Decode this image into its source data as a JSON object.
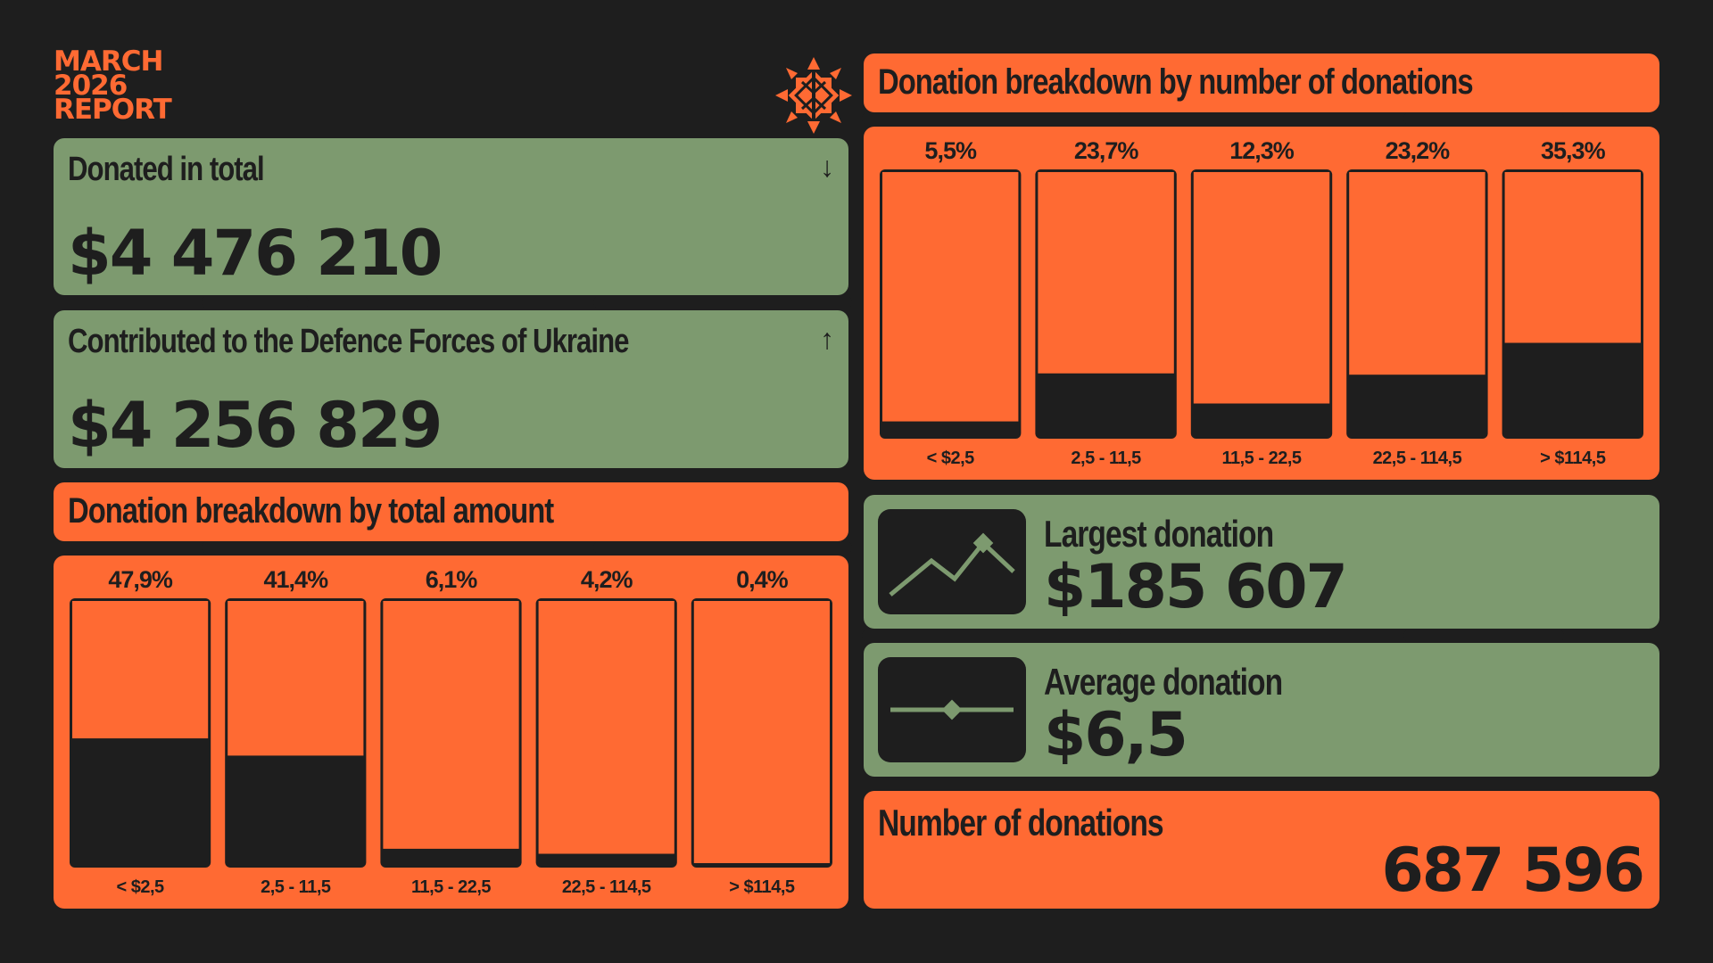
{
  "report": {
    "line1": "MARCH",
    "line2": "2026",
    "line3": "REPORT"
  },
  "colors": {
    "background": "#1e1e1e",
    "orange": "#ff6a33",
    "green": "#7d9a6f",
    "dark": "#1e1e1e"
  },
  "donated": {
    "label": "Donated in total",
    "value": "$4 476 210",
    "icon": "arrow-down-icon",
    "arrow": "↓"
  },
  "contributed": {
    "label": "Contributed to the Defence Forces of Ukraine",
    "value": "$4 256 829",
    "icon": "arrow-up-icon",
    "arrow": "↑"
  },
  "largest": {
    "label": "Largest donation",
    "value": "$185 607",
    "icon": "peak-chart-icon"
  },
  "average": {
    "label": "Average donation",
    "value": "$6,5",
    "icon": "diamond-line-icon"
  },
  "count": {
    "label": "Number of donations",
    "value": "687 596"
  },
  "chart_data": [
    {
      "type": "bar",
      "title": "Donation breakdown by total amount",
      "categories": [
        "< $2,5",
        "2,5 - 11,5",
        "11,5 - 22,5",
        "22,5 - 114,5",
        "> $114,5"
      ],
      "values": [
        47.9,
        41.4,
        6.1,
        4.2,
        0.4
      ],
      "labels": [
        "47,9%",
        "41,4%",
        "6,1%",
        "4,2%",
        "0,4%"
      ],
      "ylim": [
        0,
        100
      ]
    },
    {
      "type": "bar",
      "title": "Donation breakdown by number of donations",
      "categories": [
        "< $2,5",
        "2,5 - 11,5",
        "11,5 - 22,5",
        "22,5 - 114,5",
        "> $114,5"
      ],
      "values": [
        5.5,
        23.7,
        12.3,
        23.2,
        35.3
      ],
      "labels": [
        "5,5%",
        "23,7%",
        "12,3%",
        "23,2%",
        "35,3%"
      ],
      "ylim": [
        0,
        100
      ]
    }
  ]
}
